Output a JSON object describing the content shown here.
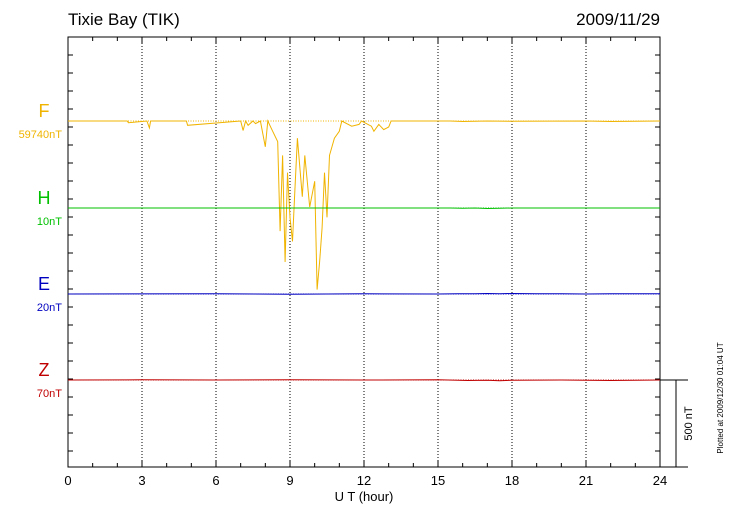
{
  "header": {
    "station": "Tixie Bay (TIK)",
    "date": "2009/11/29"
  },
  "plotted_note": "Plotted at 2009/12/30 01:04 UT",
  "scale_bar_label": "500 nT",
  "chart_data": {
    "type": "line",
    "title": "Tixie Bay (TIK)",
    "xlabel": "U T (hour)",
    "ylabel": "",
    "xlim": [
      0,
      24
    ],
    "xticks": [
      "0",
      "3",
      "6",
      "9",
      "12",
      "15",
      "18",
      "21",
      "24"
    ],
    "grid": "vertical dotted at every 3 hours",
    "scale_bar_nT": 500,
    "series": [
      {
        "name": "F",
        "baseline_label": "59740nT",
        "color": "#f0b400",
        "x": [
          0,
          2.4,
          2.45,
          3.2,
          3.3,
          3.35,
          4.8,
          4.85,
          7.0,
          7.1,
          7.2,
          7.3,
          7.5,
          7.6,
          7.8,
          8.0,
          8.1,
          8.3,
          8.5,
          8.6,
          8.7,
          8.8,
          8.9,
          9.0,
          9.1,
          9.2,
          9.3,
          9.5,
          9.6,
          9.8,
          10.0,
          10.1,
          10.2,
          10.3,
          10.4,
          10.5,
          10.6,
          10.8,
          11.0,
          11.1,
          11.5,
          11.8,
          11.9,
          12.3,
          12.4,
          12.6,
          12.8,
          13.0,
          13.1,
          15.5,
          16.0,
          17.0,
          18.0,
          21.0,
          22.0,
          24.0
        ],
        "y": [
          0,
          0,
          -10,
          0,
          -40,
          0,
          0,
          -25,
          0,
          -55,
          0,
          -25,
          0,
          -15,
          0,
          -150,
          0,
          -60,
          -120,
          -640,
          -200,
          -820,
          -300,
          -560,
          -700,
          -400,
          -100,
          -440,
          -200,
          -500,
          -350,
          -980,
          -820,
          -620,
          -300,
          -560,
          -200,
          -100,
          -60,
          0,
          -30,
          -20,
          0,
          -30,
          -60,
          -20,
          -50,
          -35,
          0,
          0,
          -3,
          0,
          -2,
          0,
          -3,
          0
        ]
      },
      {
        "name": "H",
        "baseline_label": "10nT",
        "color": "#00c000",
        "x": [
          0,
          15.5,
          16.0,
          16.5,
          17.0,
          17.5,
          18.0,
          24.0
        ],
        "y": [
          0,
          0,
          -2,
          0,
          -3,
          -1,
          0,
          0
        ]
      },
      {
        "name": "E",
        "baseline_label": "20nT",
        "color": "#0000c0",
        "x": [
          0,
          6.0,
          9.0,
          12.0,
          15.0,
          15.8,
          16.5,
          17.0,
          17.5,
          18.0,
          19.0,
          20.0,
          21.0,
          22.0,
          24.0
        ],
        "y": [
          0,
          1,
          -1,
          1,
          0,
          2,
          1,
          3,
          2,
          3,
          1,
          2,
          0,
          2,
          1
        ]
      },
      {
        "name": "Z",
        "baseline_label": "70nT",
        "color": "#c00000",
        "x": [
          0,
          3.0,
          6.0,
          9.0,
          12.0,
          15.0,
          15.8,
          16.2,
          17.0,
          17.5,
          18.0,
          20.0,
          22.0,
          23.0,
          24.0
        ],
        "y": [
          0,
          1,
          0,
          1,
          0,
          1,
          -2,
          -3,
          -2,
          -4,
          -1,
          0,
          -3,
          -1,
          0
        ]
      }
    ]
  }
}
